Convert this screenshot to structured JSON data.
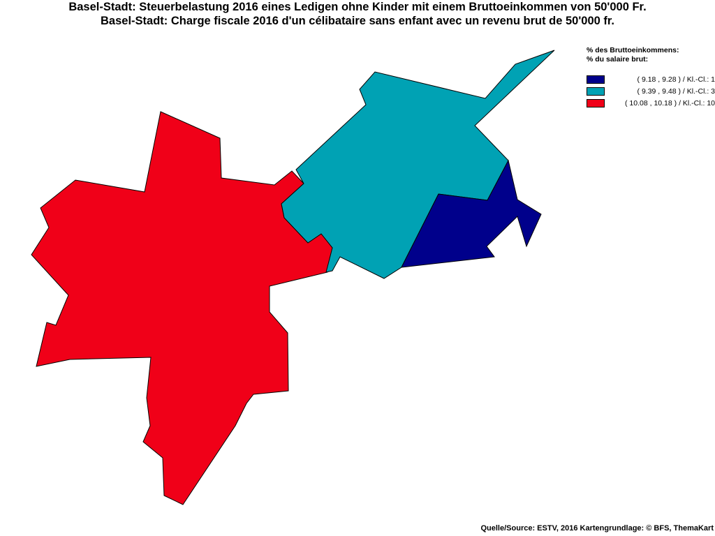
{
  "title": {
    "line1": "Basel-Stadt: Steuerbelastung 2016 eines Ledigen ohne Kinder mit einem Bruttoeinkommen von 50'000 Fr.",
    "line2": "Basel-Stadt: Charge fiscale 2016 d'un célibataire sans enfant avec un revenu brut de 50'000 fr."
  },
  "legend": {
    "heading1": "% des Bruttoeinkommens:",
    "heading2": "% du salaire brut:",
    "classes": [
      {
        "label": "( 9.18 , 9.28 ) / Kl.-Cl.: 1",
        "color": "#00008b"
      },
      {
        "label": "( 9.39 , 9.48 ) / Kl.-Cl.: 3",
        "color": "#00a2b4"
      },
      {
        "label": "( 10.08 , 10.18 ) / Kl.-Cl.: 10",
        "color": "#f00018"
      }
    ]
  },
  "map": {
    "regions": [
      {
        "class": 10,
        "color": "#f00018"
      },
      {
        "class": 3,
        "color": "#00a2b4"
      },
      {
        "class": 1,
        "color": "#00008b"
      }
    ],
    "border_color": "#000000"
  },
  "source": "Quelle/Source: ESTV, 2016 Kartengrundlage: © BFS, ThemaKart"
}
